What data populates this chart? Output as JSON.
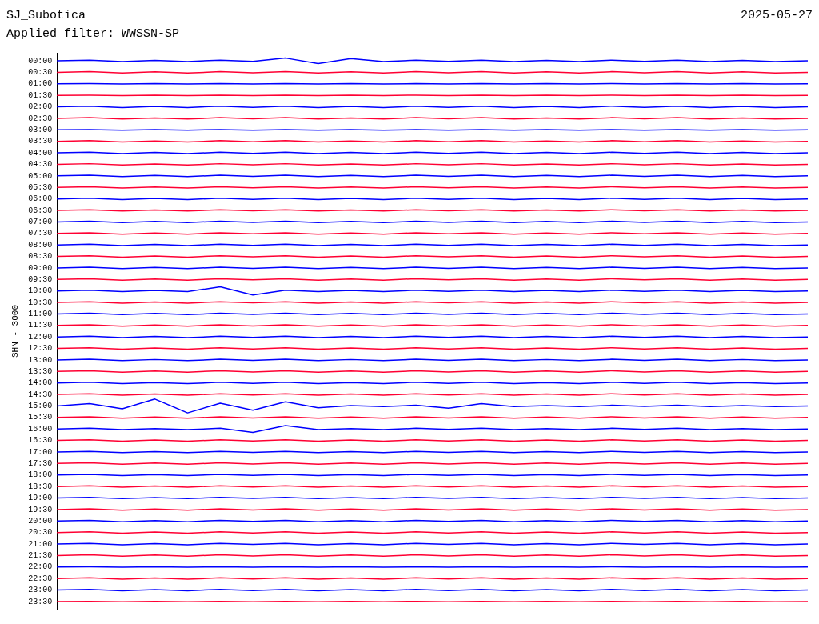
{
  "chart_data": {
    "type": "line",
    "title": "SJ_Subotica",
    "subtitle": "Applied filter: WWSSN-SP",
    "annotations": [
      "2025-05-27"
    ],
    "ylabel": "SHN - 3000",
    "grid": false,
    "legend": false,
    "marker": "none",
    "tick_labels": "y",
    "categories": [
      null,
      null,
      null,
      null,
      null,
      null,
      null,
      null,
      null,
      null,
      null,
      null,
      null,
      null,
      null,
      null,
      null,
      null,
      null,
      null,
      null,
      null,
      null,
      null
    ],
    "ylim": [
      23.85,
      -0.35
    ],
    "yticks": [
      {
        "value": 0,
        "label": "00:00"
      },
      {
        "value": 0.5,
        "label": "00:30"
      },
      {
        "value": 1,
        "label": "01:00"
      },
      {
        "value": 1.5,
        "label": "01:30"
      },
      {
        "value": 2,
        "label": "02:00"
      },
      {
        "value": 2.5,
        "label": "02:30"
      },
      {
        "value": 3,
        "label": "03:00"
      },
      {
        "value": 3.5,
        "label": "03:30"
      },
      {
        "value": 4,
        "label": "04:00"
      },
      {
        "value": 4.5,
        "label": "04:30"
      },
      {
        "value": 5,
        "label": "05:00"
      },
      {
        "value": 5.5,
        "label": "05:30"
      },
      {
        "value": 6,
        "label": "06:00"
      },
      {
        "value": 6.5,
        "label": "06:30"
      },
      {
        "value": 7,
        "label": "07:00"
      },
      {
        "value": 7.5,
        "label": "07:30"
      },
      {
        "value": 8,
        "label": "08:00"
      },
      {
        "value": 8.5,
        "label": "08:30"
      },
      {
        "value": 9,
        "label": "09:00"
      },
      {
        "value": 9.5,
        "label": "09:30"
      },
      {
        "value": 10,
        "label": "10:00"
      },
      {
        "value": 10.5,
        "label": "10:30"
      },
      {
        "value": 11,
        "label": "11:00"
      },
      {
        "value": 11.5,
        "label": "11:30"
      },
      {
        "value": 12,
        "label": "12:00"
      },
      {
        "value": 12.5,
        "label": "12:30"
      },
      {
        "value": 13,
        "label": "13:00"
      },
      {
        "value": 13.5,
        "label": "13:30"
      },
      {
        "value": 14,
        "label": "14:00"
      },
      {
        "value": 14.5,
        "label": "14:30"
      },
      {
        "value": 15,
        "label": "15:00"
      },
      {
        "value": 15.5,
        "label": "15:30"
      },
      {
        "value": 16,
        "label": "16:00"
      },
      {
        "value": 16.5,
        "label": "16:30"
      },
      {
        "value": 17,
        "label": "17:00"
      },
      {
        "value": 17.5,
        "label": "17:30"
      },
      {
        "value": 18,
        "label": "18:00"
      },
      {
        "value": 18.5,
        "label": "18:30"
      },
      {
        "value": 19,
        "label": "19:00"
      },
      {
        "value": 19.5,
        "label": "19:30"
      },
      {
        "value": 20,
        "label": "20:00"
      },
      {
        "value": 20.5,
        "label": "20:30"
      },
      {
        "value": 21,
        "label": "21:00"
      },
      {
        "value": 21.5,
        "label": "21:30"
      },
      {
        "value": 22,
        "label": "22:00"
      },
      {
        "value": 22.5,
        "label": "22:30"
      },
      {
        "value": 23,
        "label": "23:00"
      },
      {
        "value": 23.5,
        "label": "23:30"
      }
    ],
    "series": [
      {
        "color": "#0000ff",
        "values": [
          0,
          -0.03,
          0.03,
          -0.02,
          0.03,
          -0.03,
          0.02,
          -0.12,
          0.12,
          -0.1,
          0.03,
          -0.03,
          0.02,
          -0.03,
          0.03,
          -0.02,
          0.03,
          -0.03,
          0.02,
          -0.03,
          0.03,
          -0.02,
          0.03,
          0
        ]
      },
      {
        "color": "#ff0033",
        "values": [
          0.5,
          0.47,
          0.53,
          0.48,
          0.53,
          0.47,
          0.52,
          0.47,
          0.53,
          0.48,
          0.53,
          0.47,
          0.52,
          0.47,
          0.53,
          0.48,
          0.53,
          0.47,
          0.52,
          0.47,
          0.53,
          0.48,
          0.53,
          0.5
        ]
      },
      {
        "color": "#0000ff",
        "values": [
          1,
          0.99,
          1.01,
          0.99,
          1.01,
          0.99,
          1.01,
          0.99,
          1.01,
          0.99,
          1.01,
          0.99,
          1.01,
          0.99,
          1.01,
          0.99,
          1.01,
          0.99,
          1.01,
          0.99,
          1.01,
          0.99,
          1.01,
          1
        ]
      },
      {
        "color": "#ff0033",
        "values": [
          1.5,
          1.49,
          1.51,
          1.49,
          1.51,
          1.49,
          1.51,
          1.49,
          1.51,
          1.49,
          1.51,
          1.49,
          1.51,
          1.49,
          1.51,
          1.49,
          1.51,
          1.49,
          1.51,
          1.49,
          1.51,
          1.49,
          1.51,
          1.5
        ]
      },
      {
        "color": "#0000ff",
        "values": [
          2,
          1.97,
          2.03,
          1.98,
          2.03,
          1.97,
          2.02,
          1.97,
          2.03,
          1.98,
          2.03,
          1.97,
          2.02,
          1.97,
          2.03,
          1.98,
          2.03,
          1.97,
          2.02,
          1.97,
          2.03,
          1.98,
          2.03,
          2
        ]
      },
      {
        "color": "#ff0033",
        "values": [
          2.5,
          2.47,
          2.53,
          2.48,
          2.53,
          2.47,
          2.52,
          2.47,
          2.53,
          2.48,
          2.53,
          2.47,
          2.52,
          2.47,
          2.53,
          2.48,
          2.53,
          2.47,
          2.52,
          2.47,
          2.53,
          2.48,
          2.53,
          2.5
        ]
      },
      {
        "color": "#0000ff",
        "values": [
          3,
          2.99,
          3.01,
          2.99,
          3.01,
          2.99,
          3.01,
          2.99,
          3.01,
          2.99,
          3.01,
          2.99,
          3.01,
          2.99,
          3.01,
          2.99,
          3.01,
          2.99,
          3.01,
          2.99,
          3.01,
          2.99,
          3.01,
          3
        ]
      },
      {
        "color": "#ff0033",
        "values": [
          3.5,
          3.47,
          3.53,
          3.48,
          3.53,
          3.47,
          3.52,
          3.47,
          3.53,
          3.48,
          3.53,
          3.47,
          3.52,
          3.47,
          3.53,
          3.48,
          3.53,
          3.47,
          3.52,
          3.47,
          3.53,
          3.48,
          3.53,
          3.5
        ]
      },
      {
        "color": "#0000ff",
        "values": [
          4,
          3.97,
          4.03,
          3.98,
          4.03,
          3.97,
          4.02,
          3.97,
          4.03,
          3.98,
          4.03,
          3.97,
          4.02,
          3.97,
          4.03,
          3.98,
          4.03,
          3.97,
          4.02,
          3.97,
          4.03,
          3.98,
          4.03,
          4
        ]
      },
      {
        "color": "#ff0033",
        "values": [
          4.5,
          4.47,
          4.53,
          4.48,
          4.53,
          4.47,
          4.52,
          4.47,
          4.53,
          4.48,
          4.53,
          4.47,
          4.52,
          4.47,
          4.53,
          4.48,
          4.53,
          4.47,
          4.52,
          4.47,
          4.53,
          4.48,
          4.53,
          4.5
        ]
      },
      {
        "color": "#0000ff",
        "values": [
          5,
          4.97,
          5.03,
          4.98,
          5.03,
          4.97,
          5.02,
          4.97,
          5.03,
          4.98,
          5.03,
          4.97,
          5.02,
          4.97,
          5.03,
          4.98,
          5.03,
          4.97,
          5.02,
          4.97,
          5.03,
          4.98,
          5.03,
          5
        ]
      },
      {
        "color": "#ff0033",
        "values": [
          5.5,
          5.47,
          5.53,
          5.48,
          5.53,
          5.47,
          5.52,
          5.47,
          5.53,
          5.48,
          5.53,
          5.47,
          5.52,
          5.47,
          5.53,
          5.48,
          5.53,
          5.47,
          5.52,
          5.47,
          5.53,
          5.48,
          5.53,
          5.5
        ]
      },
      {
        "color": "#0000ff",
        "values": [
          6,
          5.97,
          6.03,
          5.98,
          6.03,
          5.97,
          6.02,
          5.97,
          6.03,
          5.98,
          6.03,
          5.97,
          6.02,
          5.97,
          6.03,
          5.98,
          6.03,
          5.97,
          6.02,
          5.97,
          6.03,
          5.98,
          6.03,
          6
        ]
      },
      {
        "color": "#ff0033",
        "values": [
          6.5,
          6.47,
          6.53,
          6.48,
          6.53,
          6.47,
          6.52,
          6.47,
          6.53,
          6.48,
          6.53,
          6.47,
          6.52,
          6.47,
          6.53,
          6.48,
          6.53,
          6.47,
          6.52,
          6.47,
          6.53,
          6.48,
          6.53,
          6.5
        ]
      },
      {
        "color": "#0000ff",
        "values": [
          7,
          6.97,
          7.03,
          6.98,
          7.03,
          6.97,
          7.02,
          6.97,
          7.03,
          6.98,
          7.03,
          6.97,
          7.02,
          6.97,
          7.03,
          6.98,
          7.03,
          6.97,
          7.02,
          6.97,
          7.03,
          6.98,
          7.03,
          7
        ]
      },
      {
        "color": "#ff0033",
        "values": [
          7.5,
          7.47,
          7.53,
          7.48,
          7.53,
          7.47,
          7.52,
          7.47,
          7.53,
          7.48,
          7.53,
          7.47,
          7.52,
          7.47,
          7.53,
          7.48,
          7.53,
          7.47,
          7.52,
          7.47,
          7.53,
          7.48,
          7.53,
          7.5
        ]
      },
      {
        "color": "#0000ff",
        "values": [
          8,
          7.97,
          8.03,
          7.98,
          8.03,
          7.97,
          8.02,
          7.97,
          8.03,
          7.98,
          8.03,
          7.97,
          8.02,
          7.97,
          8.03,
          7.98,
          8.03,
          7.97,
          8.02,
          7.97,
          8.03,
          7.98,
          8.03,
          8
        ]
      },
      {
        "color": "#ff0033",
        "values": [
          8.5,
          8.47,
          8.53,
          8.48,
          8.53,
          8.47,
          8.52,
          8.47,
          8.53,
          8.48,
          8.53,
          8.47,
          8.52,
          8.47,
          8.53,
          8.48,
          8.53,
          8.47,
          8.52,
          8.47,
          8.53,
          8.48,
          8.53,
          8.5
        ]
      },
      {
        "color": "#0000ff",
        "values": [
          9,
          8.97,
          9.03,
          8.98,
          9.03,
          8.97,
          9.02,
          8.97,
          9.03,
          8.98,
          9.03,
          8.97,
          9.02,
          8.97,
          9.03,
          8.98,
          9.03,
          8.97,
          9.02,
          8.97,
          9.03,
          8.98,
          9.03,
          9
        ]
      },
      {
        "color": "#ff0033",
        "values": [
          9.5,
          9.47,
          9.53,
          9.48,
          9.53,
          9.47,
          9.52,
          9.47,
          9.53,
          9.48,
          9.53,
          9.47,
          9.52,
          9.47,
          9.53,
          9.48,
          9.53,
          9.47,
          9.52,
          9.47,
          9.53,
          9.48,
          9.53,
          9.5
        ]
      },
      {
        "color": "#0000ff",
        "values": [
          10,
          9.97,
          10.03,
          9.98,
          10.03,
          9.82,
          10.18,
          9.97,
          10.03,
          9.98,
          10.03,
          9.97,
          10.02,
          9.97,
          10.03,
          9.98,
          10.03,
          9.97,
          10.02,
          9.97,
          10.03,
          9.98,
          10.03,
          10
        ]
      },
      {
        "color": "#ff0033",
        "values": [
          10.5,
          10.47,
          10.53,
          10.48,
          10.53,
          10.47,
          10.52,
          10.47,
          10.53,
          10.48,
          10.53,
          10.47,
          10.52,
          10.47,
          10.53,
          10.48,
          10.53,
          10.47,
          10.52,
          10.47,
          10.53,
          10.48,
          10.53,
          10.5
        ]
      },
      {
        "color": "#0000ff",
        "values": [
          11,
          10.97,
          11.03,
          10.98,
          11.03,
          10.97,
          11.02,
          10.97,
          11.03,
          10.98,
          11.03,
          10.97,
          11.02,
          10.97,
          11.03,
          10.98,
          11.03,
          10.97,
          11.02,
          10.97,
          11.03,
          10.98,
          11.03,
          11
        ]
      },
      {
        "color": "#ff0033",
        "values": [
          11.5,
          11.47,
          11.53,
          11.48,
          11.53,
          11.47,
          11.52,
          11.47,
          11.53,
          11.48,
          11.53,
          11.47,
          11.52,
          11.47,
          11.53,
          11.48,
          11.53,
          11.47,
          11.52,
          11.47,
          11.53,
          11.48,
          11.53,
          11.5
        ]
      },
      {
        "color": "#0000ff",
        "values": [
          12,
          11.97,
          12.03,
          11.98,
          12.03,
          11.97,
          12.02,
          11.97,
          12.03,
          11.98,
          12.03,
          11.97,
          12.02,
          11.97,
          12.03,
          11.98,
          12.03,
          11.97,
          12.02,
          11.97,
          12.03,
          11.98,
          12.03,
          12
        ]
      },
      {
        "color": "#ff0033",
        "values": [
          12.5,
          12.47,
          12.53,
          12.48,
          12.53,
          12.47,
          12.52,
          12.47,
          12.53,
          12.48,
          12.53,
          12.47,
          12.52,
          12.47,
          12.53,
          12.48,
          12.53,
          12.47,
          12.52,
          12.47,
          12.53,
          12.48,
          12.53,
          12.5
        ]
      },
      {
        "color": "#0000ff",
        "values": [
          13,
          12.97,
          13.03,
          12.98,
          13.03,
          12.97,
          13.02,
          12.97,
          13.03,
          12.98,
          13.03,
          12.97,
          13.02,
          12.97,
          13.03,
          12.98,
          13.03,
          12.97,
          13.02,
          12.97,
          13.03,
          12.98,
          13.03,
          13
        ]
      },
      {
        "color": "#ff0033",
        "values": [
          13.5,
          13.47,
          13.53,
          13.48,
          13.53,
          13.47,
          13.52,
          13.47,
          13.53,
          13.48,
          13.53,
          13.47,
          13.52,
          13.47,
          13.53,
          13.48,
          13.53,
          13.47,
          13.52,
          13.47,
          13.53,
          13.48,
          13.53,
          13.5
        ]
      },
      {
        "color": "#0000ff",
        "values": [
          14,
          13.97,
          14.03,
          13.98,
          14.03,
          13.97,
          14.02,
          13.97,
          14.03,
          13.98,
          14.03,
          13.97,
          14.02,
          13.97,
          14.03,
          13.98,
          14.03,
          13.97,
          14.02,
          13.97,
          14.03,
          13.98,
          14.03,
          14
        ]
      },
      {
        "color": "#ff0033",
        "values": [
          14.5,
          14.47,
          14.53,
          14.48,
          14.53,
          14.47,
          14.52,
          14.47,
          14.53,
          14.48,
          14.53,
          14.47,
          14.52,
          14.47,
          14.53,
          14.48,
          14.53,
          14.47,
          14.52,
          14.47,
          14.53,
          14.48,
          14.53,
          14.5
        ]
      },
      {
        "color": "#0000ff",
        "values": [
          15,
          14.9,
          15.12,
          14.7,
          15.3,
          14.88,
          15.18,
          14.82,
          15.08,
          14.98,
          15.03,
          14.97,
          15.1,
          14.9,
          15.03,
          14.98,
          15.03,
          14.97,
          15.02,
          14.97,
          15.03,
          14.98,
          15.03,
          15
        ]
      },
      {
        "color": "#ff0033",
        "values": [
          15.5,
          15.47,
          15.53,
          15.48,
          15.53,
          15.47,
          15.52,
          15.47,
          15.53,
          15.48,
          15.53,
          15.47,
          15.52,
          15.47,
          15.53,
          15.48,
          15.53,
          15.47,
          15.52,
          15.47,
          15.53,
          15.48,
          15.53,
          15.5
        ]
      },
      {
        "color": "#0000ff",
        "values": [
          16,
          15.97,
          16.03,
          15.98,
          16.03,
          15.97,
          16.15,
          15.85,
          16.03,
          15.98,
          16.03,
          15.97,
          16.02,
          15.97,
          16.03,
          15.98,
          16.03,
          15.97,
          16.02,
          15.97,
          16.03,
          15.98,
          16.03,
          16
        ]
      },
      {
        "color": "#ff0033",
        "values": [
          16.5,
          16.47,
          16.53,
          16.48,
          16.53,
          16.47,
          16.52,
          16.47,
          16.53,
          16.48,
          16.53,
          16.47,
          16.52,
          16.47,
          16.53,
          16.48,
          16.53,
          16.47,
          16.52,
          16.47,
          16.53,
          16.48,
          16.53,
          16.5
        ]
      },
      {
        "color": "#0000ff",
        "values": [
          17,
          16.97,
          17.03,
          16.98,
          17.03,
          16.97,
          17.02,
          16.97,
          17.03,
          16.98,
          17.03,
          16.97,
          17.02,
          16.97,
          17.03,
          16.98,
          17.03,
          16.97,
          17.02,
          16.97,
          17.03,
          16.98,
          17.03,
          17
        ]
      },
      {
        "color": "#ff0033",
        "values": [
          17.5,
          17.47,
          17.53,
          17.48,
          17.53,
          17.47,
          17.52,
          17.47,
          17.53,
          17.48,
          17.53,
          17.47,
          17.52,
          17.47,
          17.53,
          17.48,
          17.53,
          17.47,
          17.52,
          17.47,
          17.53,
          17.48,
          17.53,
          17.5
        ]
      },
      {
        "color": "#0000ff",
        "values": [
          18,
          17.97,
          18.03,
          17.98,
          18.03,
          17.97,
          18.02,
          17.97,
          18.03,
          17.98,
          18.03,
          17.97,
          18.02,
          17.97,
          18.03,
          17.98,
          18.03,
          17.97,
          18.02,
          17.97,
          18.03,
          17.98,
          18.03,
          18
        ]
      },
      {
        "color": "#ff0033",
        "values": [
          18.5,
          18.47,
          18.53,
          18.48,
          18.53,
          18.47,
          18.52,
          18.47,
          18.53,
          18.48,
          18.53,
          18.47,
          18.52,
          18.47,
          18.53,
          18.48,
          18.53,
          18.47,
          18.52,
          18.47,
          18.53,
          18.48,
          18.53,
          18.5
        ]
      },
      {
        "color": "#0000ff",
        "values": [
          19,
          18.97,
          19.03,
          18.98,
          19.03,
          18.97,
          19.02,
          18.97,
          19.03,
          18.98,
          19.03,
          18.97,
          19.02,
          18.97,
          19.03,
          18.98,
          19.03,
          18.97,
          19.02,
          18.97,
          19.03,
          18.98,
          19.03,
          19
        ]
      },
      {
        "color": "#ff0033",
        "values": [
          19.5,
          19.47,
          19.53,
          19.48,
          19.53,
          19.47,
          19.52,
          19.47,
          19.53,
          19.48,
          19.53,
          19.47,
          19.52,
          19.47,
          19.53,
          19.48,
          19.53,
          19.47,
          19.52,
          19.47,
          19.53,
          19.48,
          19.53,
          19.5
        ]
      },
      {
        "color": "#0000ff",
        "values": [
          20,
          19.97,
          20.03,
          19.98,
          20.03,
          19.97,
          20.02,
          19.97,
          20.03,
          19.98,
          20.03,
          19.97,
          20.02,
          19.97,
          20.03,
          19.98,
          20.03,
          19.97,
          20.02,
          19.97,
          20.03,
          19.98,
          20.03,
          20
        ]
      },
      {
        "color": "#ff0033",
        "values": [
          20.5,
          20.47,
          20.53,
          20.48,
          20.53,
          20.47,
          20.52,
          20.47,
          20.53,
          20.48,
          20.53,
          20.47,
          20.52,
          20.47,
          20.53,
          20.48,
          20.53,
          20.47,
          20.52,
          20.47,
          20.53,
          20.48,
          20.53,
          20.5
        ]
      },
      {
        "color": "#0000ff",
        "values": [
          21,
          20.97,
          21.03,
          20.98,
          21.03,
          20.97,
          21.02,
          20.97,
          21.03,
          20.98,
          21.03,
          20.97,
          21.02,
          20.97,
          21.03,
          20.98,
          21.03,
          20.97,
          21.02,
          20.97,
          21.03,
          20.98,
          21.03,
          21
        ]
      },
      {
        "color": "#ff0033",
        "values": [
          21.5,
          21.47,
          21.53,
          21.48,
          21.53,
          21.47,
          21.52,
          21.47,
          21.53,
          21.48,
          21.53,
          21.47,
          21.52,
          21.47,
          21.53,
          21.48,
          21.53,
          21.47,
          21.52,
          21.47,
          21.53,
          21.48,
          21.53,
          21.5
        ]
      },
      {
        "color": "#0000ff",
        "values": [
          22,
          21.99,
          22.01,
          21.99,
          22.01,
          21.99,
          22.01,
          21.99,
          22.01,
          21.99,
          22.01,
          21.99,
          22.01,
          21.99,
          22.01,
          21.99,
          22.01,
          21.99,
          22.01,
          21.99,
          22.01,
          21.99,
          22.01,
          22
        ]
      },
      {
        "color": "#ff0033",
        "values": [
          22.5,
          22.47,
          22.53,
          22.48,
          22.53,
          22.47,
          22.52,
          22.47,
          22.53,
          22.48,
          22.53,
          22.47,
          22.52,
          22.47,
          22.53,
          22.48,
          22.53,
          22.47,
          22.52,
          22.47,
          22.53,
          22.48,
          22.53,
          22.5
        ]
      },
      {
        "color": "#0000ff",
        "values": [
          23,
          22.97,
          23.03,
          22.98,
          23.03,
          22.97,
          23.02,
          22.97,
          23.03,
          22.98,
          23.03,
          22.97,
          23.02,
          22.97,
          23.03,
          22.98,
          23.03,
          22.97,
          23.02,
          22.97,
          23.03,
          22.98,
          23.03,
          23
        ]
      },
      {
        "color": "#ff0033",
        "values": [
          23.5,
          23.49,
          23.51,
          23.49,
          23.51,
          23.49,
          23.51,
          23.49,
          23.51,
          23.49,
          23.51,
          23.49,
          23.51,
          23.49,
          23.51,
          23.49,
          23.51,
          23.49,
          23.51,
          23.49,
          23.51,
          23.49,
          23.51,
          23.5
        ]
      }
    ]
  }
}
